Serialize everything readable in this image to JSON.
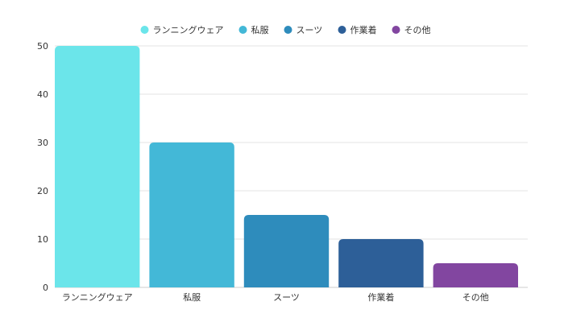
{
  "chart_data": {
    "type": "bar",
    "categories": [
      "ランニングウェア",
      "私服",
      "スーツ",
      "作業着",
      "その他"
    ],
    "values": [
      50,
      30,
      15,
      10,
      5
    ],
    "colors": [
      "#6be5ea",
      "#43b8d7",
      "#2e8cbc",
      "#2d5f98",
      "#8246a0"
    ],
    "ylim": [
      0,
      50
    ],
    "yticks": [
      0,
      10,
      20,
      30,
      40,
      50
    ],
    "grid": true,
    "legend_position": "top-center"
  }
}
